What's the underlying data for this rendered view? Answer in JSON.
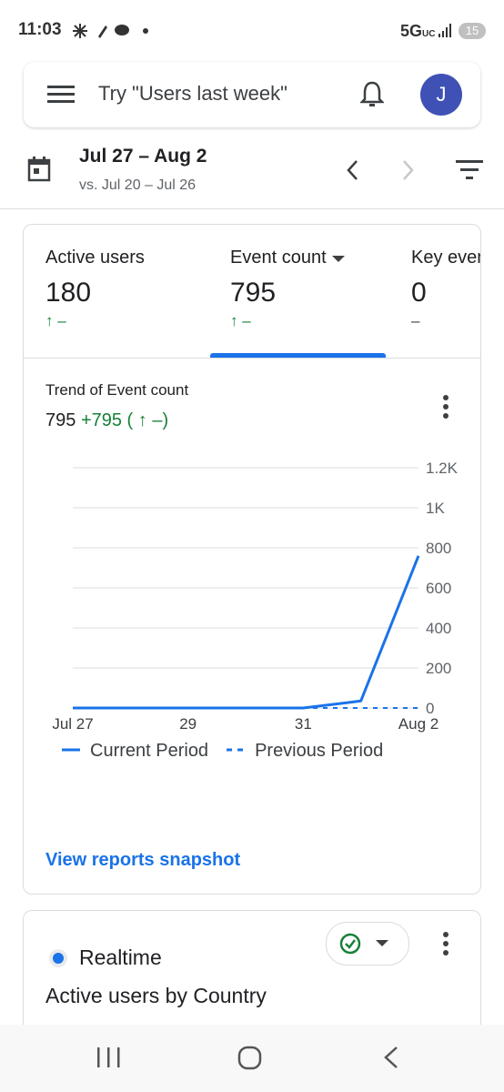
{
  "status_bar": {
    "time": "11:03",
    "network": "5G",
    "network_sub": "UC",
    "battery": "15"
  },
  "search": {
    "placeholder": "Try \"Users last week\"",
    "avatar": "J"
  },
  "date_range": {
    "title": "Jul 27 – Aug 2",
    "compare": "vs. Jul 20 – Jul 26"
  },
  "tabs": [
    {
      "label": "Active users",
      "value": "180",
      "change": "↑ –"
    },
    {
      "label": "Event count",
      "value": "795",
      "change": "↑ –"
    },
    {
      "label": "Key events",
      "value": "0",
      "change": "–"
    }
  ],
  "trend": {
    "title": "Trend of Event count",
    "total": "795",
    "delta": "+795 ( ↑ –)"
  },
  "chart_data": {
    "type": "line",
    "categories": [
      "Jul 27",
      null,
      "29",
      null,
      "31",
      null,
      "Aug 2"
    ],
    "series": [
      {
        "name": "Current Period",
        "color": "#1a73e8",
        "dashed": false,
        "values": [
          0,
          0,
          0,
          0,
          0,
          35,
          760
        ]
      },
      {
        "name": "Previous Period",
        "color": "#1a73e8",
        "dashed": true,
        "values": [
          0,
          0,
          0,
          0,
          0,
          0,
          0
        ]
      }
    ],
    "ylim": [
      0,
      1200
    ],
    "yticks": [
      0,
      200,
      400,
      600,
      800,
      {
        "value": 1000,
        "label": "1K"
      },
      {
        "value": 1200,
        "label": "1.2K"
      }
    ],
    "grid": true,
    "y_axis_side": "right"
  },
  "link": "View reports snapshot",
  "realtime": {
    "label": "Realtime",
    "title": "Active users by Country"
  }
}
